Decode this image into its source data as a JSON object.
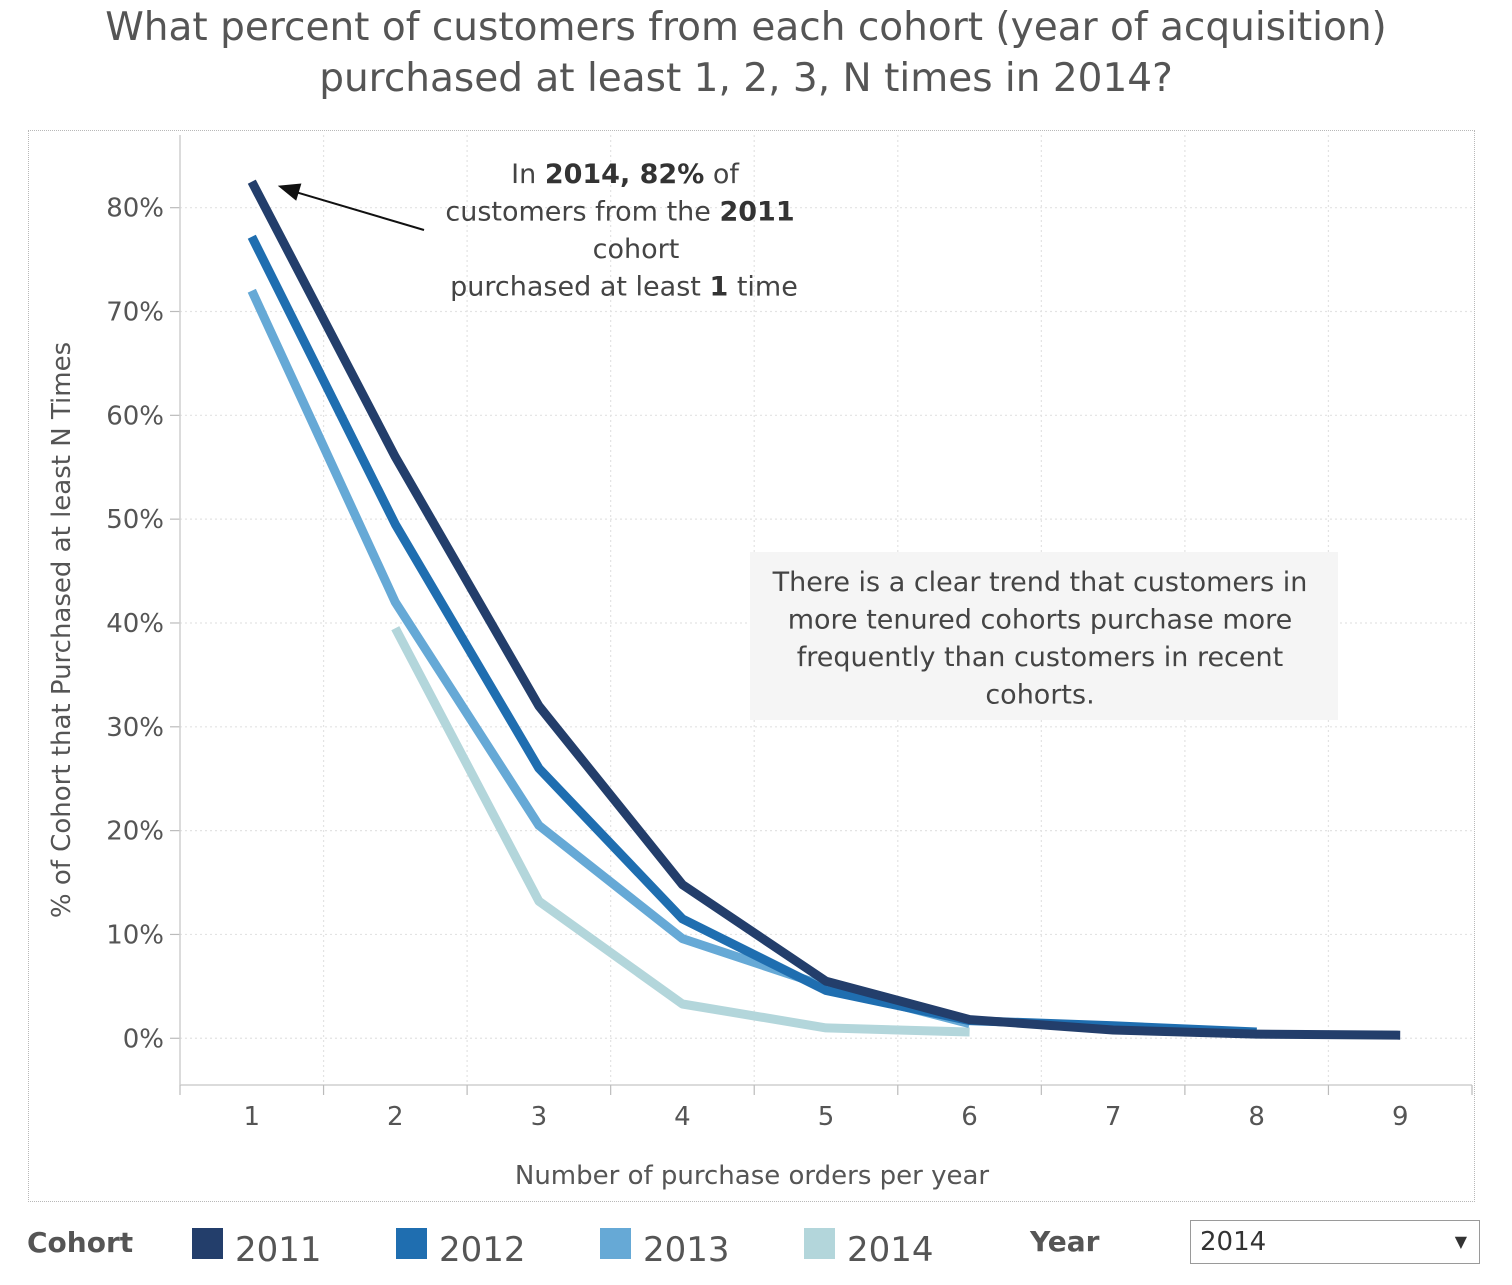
{
  "title_line1": "What percent of customers from each cohort (year of acquisition)",
  "title_line2": "purchased at least 1, 2, 3, N times in 2014?",
  "chart_data": {
    "type": "line",
    "x": [
      1,
      2,
      3,
      4,
      5,
      6,
      7,
      8,
      9
    ],
    "xlabel": "Number of purchase orders per year",
    "ylabel": "% of Cohort that Purchased at least N Times",
    "xlim": [
      0.5,
      9.5
    ],
    "ylim": [
      -4.5,
      87
    ],
    "y_ticks": [
      0,
      10,
      20,
      30,
      40,
      50,
      60,
      70,
      80
    ],
    "y_tick_labels": [
      "0%",
      "10%",
      "20%",
      "30%",
      "40%",
      "50%",
      "60%",
      "70%",
      "80%"
    ],
    "x_tick_labels": [
      "1",
      "2",
      "3",
      "4",
      "5",
      "6",
      "7",
      "8",
      "9"
    ],
    "grid": true,
    "series": [
      {
        "name": "2011",
        "color": "#233e6b",
        "x": [
          1,
          2,
          3,
          4,
          5,
          6,
          7,
          8,
          9
        ],
        "values": [
          82.5,
          56,
          32,
          14.8,
          5.5,
          1.8,
          0.8,
          0.4,
          0.3
        ]
      },
      {
        "name": "2012",
        "color": "#1f6eb0",
        "x": [
          1,
          2,
          3,
          4,
          5,
          6,
          7,
          8
        ],
        "values": [
          77.2,
          49.5,
          26,
          11.5,
          4.6,
          1.7,
          1.2,
          0.6
        ]
      },
      {
        "name": "2013",
        "color": "#66a9d6",
        "x": [
          1,
          2,
          3,
          4,
          5,
          6
        ],
        "values": [
          72,
          42,
          20.5,
          9.6,
          5.0,
          1.4
        ]
      },
      {
        "name": "2014",
        "color": "#b3d6db",
        "x": [
          2,
          3,
          4,
          5,
          6
        ],
        "values": [
          39.5,
          13.2,
          3.3,
          1.0,
          0.6
        ]
      }
    ],
    "annotations": {
      "callout": {
        "target_x": 1,
        "target_y": 82.5,
        "lines": [
          [
            {
              "t": "In ",
              "b": false
            },
            {
              "t": "2014, 82%",
              "b": true
            },
            {
              "t": " of",
              "b": false
            }
          ],
          [
            {
              "t": "customers from the ",
              "b": false
            },
            {
              "t": "2011",
              "b": true
            }
          ],
          [
            {
              "t": "cohort",
              "b": false
            }
          ],
          [
            {
              "t": "purchased at least ",
              "b": false
            },
            {
              "t": "1",
              "b": true
            },
            {
              "t": " time",
              "b": false
            }
          ]
        ]
      },
      "note": [
        "There is a clear trend that customers in",
        "more tenured cohorts purchase more",
        "frequently than customers in recent",
        "cohorts."
      ]
    }
  },
  "legend": {
    "title": "Cohort",
    "items": [
      {
        "label": "2011",
        "color": "#233e6b"
      },
      {
        "label": "2012",
        "color": "#1f6eb0"
      },
      {
        "label": "2013",
        "color": "#66a9d6"
      },
      {
        "label": "2014",
        "color": "#b3d6db"
      }
    ]
  },
  "year_filter": {
    "label": "Year",
    "value": "2014"
  }
}
